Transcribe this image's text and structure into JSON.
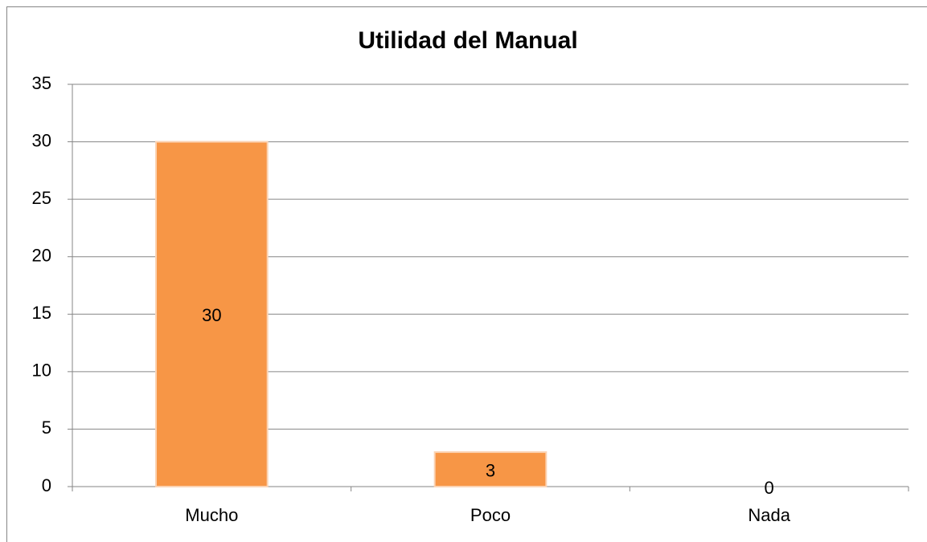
{
  "chart_data": {
    "type": "bar",
    "title": "Utilidad del Manual",
    "categories": [
      "Mucho",
      "Poco",
      "Nada"
    ],
    "values": [
      30,
      3,
      0
    ],
    "color": "#f79646",
    "ylim": [
      0,
      35
    ],
    "yticks": [
      0,
      5,
      10,
      15,
      20,
      25,
      30,
      35
    ],
    "grid": true
  }
}
